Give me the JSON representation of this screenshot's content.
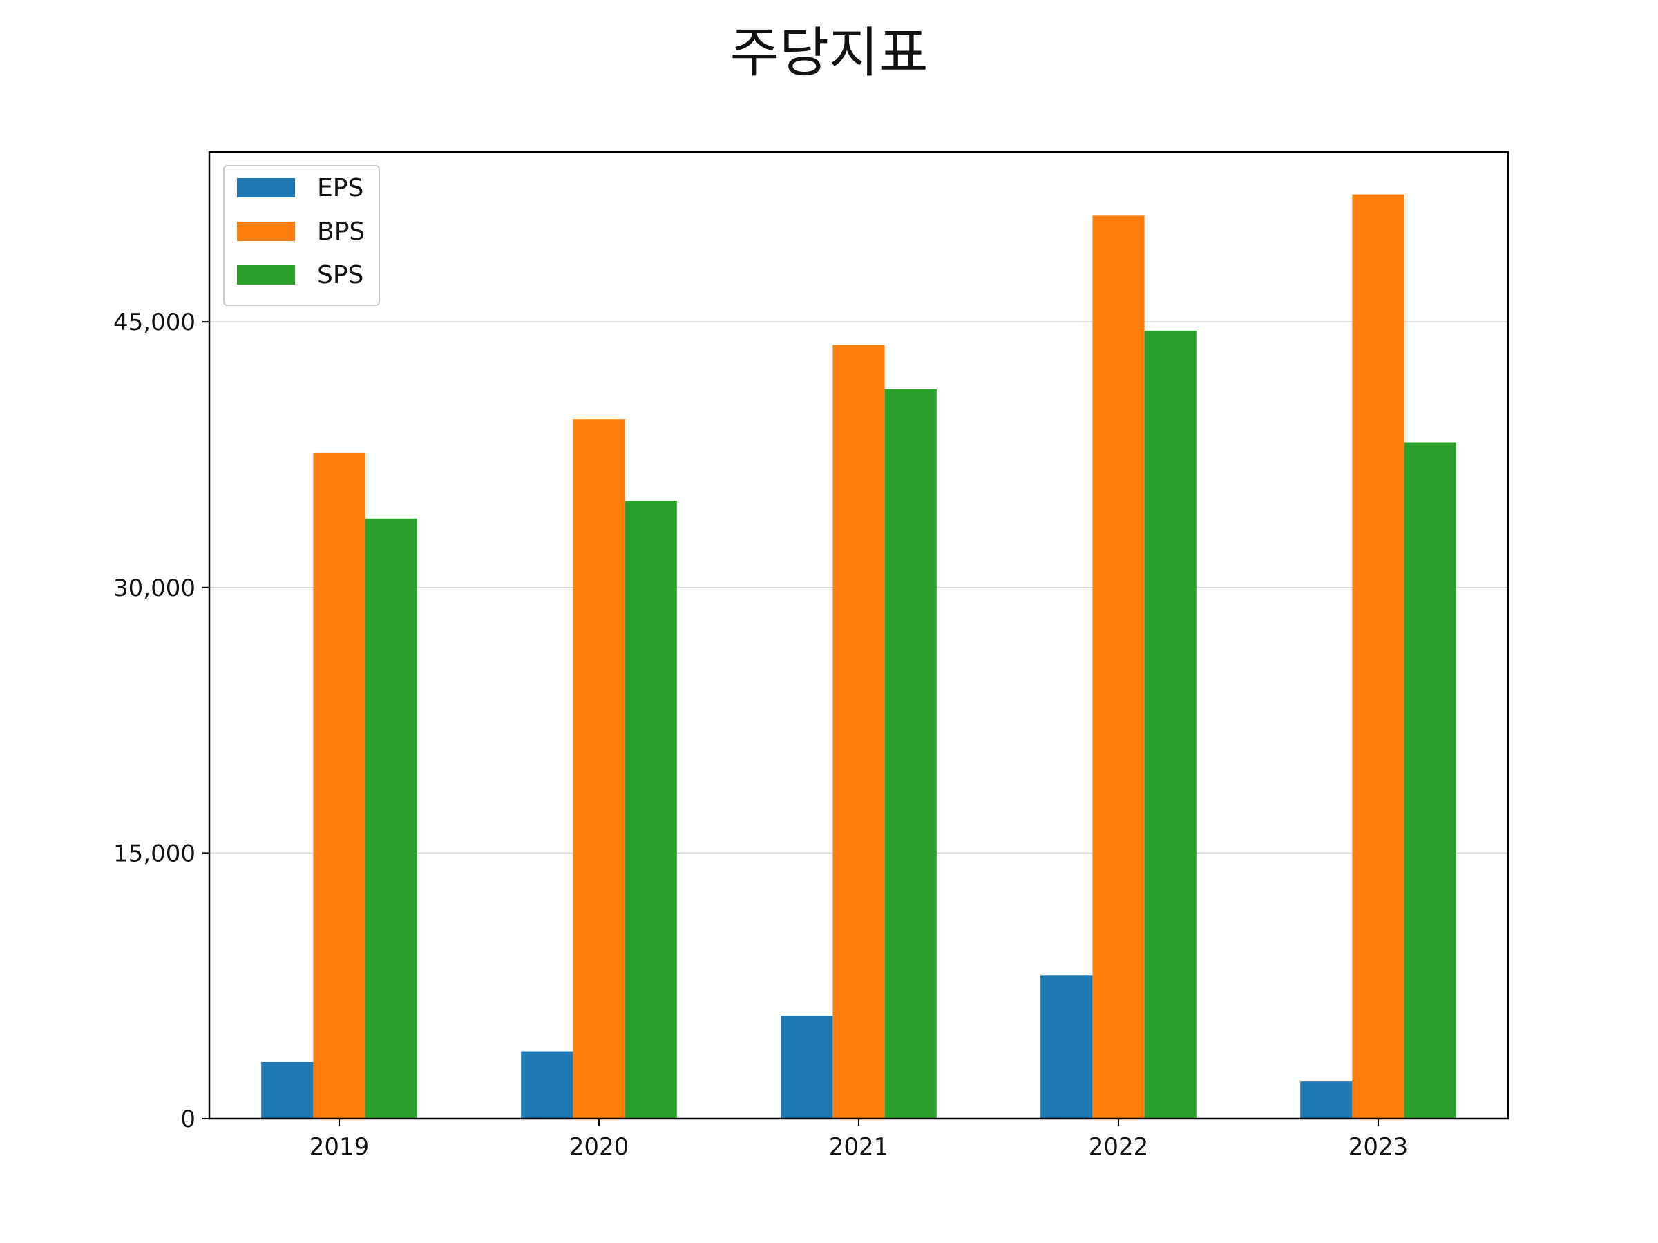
{
  "chart_data": {
    "type": "bar",
    "title": "주당지표",
    "xlabel": "",
    "ylabel": "",
    "categories": [
      "2019",
      "2020",
      "2021",
      "2022",
      "2023"
    ],
    "series": [
      {
        "name": "EPS",
        "color": "#1f77b4",
        "values": [
          3200,
          3800,
          5800,
          8100,
          2100
        ]
      },
      {
        "name": "BPS",
        "color": "#ff7f0e",
        "values": [
          37600,
          39500,
          43700,
          51000,
          52200
        ]
      },
      {
        "name": "SPS",
        "color": "#2ca02c",
        "values": [
          33900,
          34900,
          41200,
          44500,
          38200
        ]
      }
    ],
    "ylim": [
      0,
      54600
    ],
    "yticks": [
      0,
      15000,
      30000,
      45000
    ],
    "ytick_labels": [
      "0",
      "15,000",
      "30,000",
      "45,000"
    ],
    "grid": "horizontal",
    "legend_position": "upper-left"
  }
}
